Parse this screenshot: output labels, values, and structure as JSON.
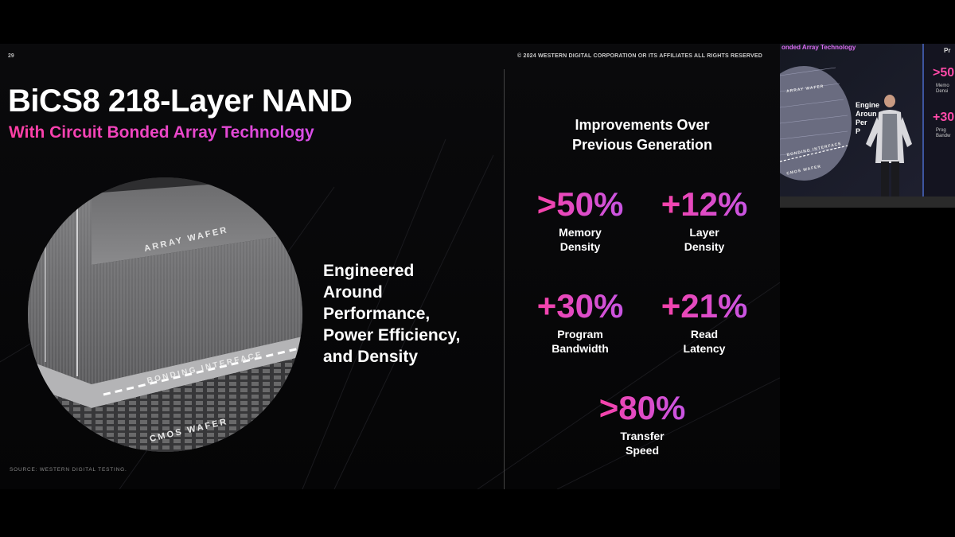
{
  "slide": {
    "page_number": "29",
    "copyright": "© 2024 WESTERN DIGITAL CORPORATION OR ITS AFFILIATES  ALL RIGHTS RESERVED",
    "title": "BiCS8 218-Layer NAND",
    "subtitle": "With Circuit Bonded Array Technology",
    "image_labels": {
      "array_wafer": "ARRAY WAFER",
      "bonding_interface": "BONDING INTERFACE",
      "cmos_wafer": "CMOS WAFER"
    },
    "engineered_lines": [
      "Engineered",
      "Around",
      "Performance,",
      "Power Efficiency,",
      "and Density"
    ],
    "source": "SOURCE: WESTERN DIGITAL TESTING.",
    "improvements_title_lines": [
      "Improvements Over",
      "Previous Generation"
    ],
    "stats": [
      {
        "value": ">50%",
        "label_lines": [
          "Memory",
          "Density"
        ]
      },
      {
        "value": "+12%",
        "label_lines": [
          "Layer",
          "Density"
        ]
      },
      {
        "value": "+30%",
        "label_lines": [
          "Program",
          "Bandwidth"
        ]
      },
      {
        "value": "+21%",
        "label_lines": [
          "Read",
          "Latency"
        ]
      },
      {
        "value": ">80%",
        "label_lines": [
          "Transfer",
          "Speed"
        ]
      }
    ],
    "accent_colors": [
      "#ff3f9e",
      "#c058ee"
    ]
  },
  "inset": {
    "title": "onded Array Technology",
    "corner_text": "Pr",
    "wafer_label_top": "ARRAY WAFER",
    "wafer_label_mid": "BONDING INTERFACE",
    "wafer_label_bottom": "CMOS WAFER",
    "text_lines": [
      "Engine",
      "Aroun",
      "Per",
      "P"
    ],
    "stat_1": ">50",
    "stat_1_small": [
      "Memo",
      "Densi"
    ],
    "stat_2": "+30",
    "stat_2_small": [
      "Prog",
      "Bandw"
    ]
  }
}
